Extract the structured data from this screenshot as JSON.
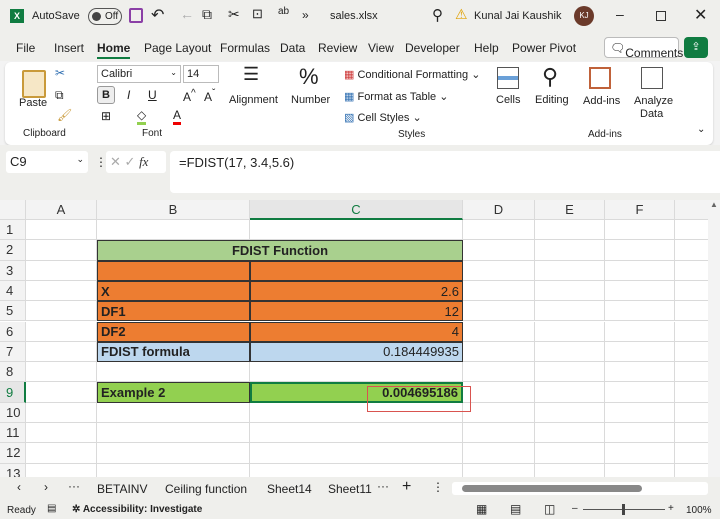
{
  "titlebar": {
    "autosave": "AutoSave",
    "toggle": "Off",
    "filename": "sales.xlsx",
    "user": "Kunal Jai Kaushik",
    "initials": "KJ"
  },
  "menu": [
    "File",
    "Insert",
    "Home",
    "Page Layout",
    "Formulas",
    "Data",
    "Review",
    "View",
    "Developer",
    "Help",
    "Power Pivot"
  ],
  "comments": "Comments",
  "ribbon": {
    "paste": "Paste",
    "clipboard": "Clipboard",
    "font_name": "Calibri",
    "font_size": "14",
    "font": "Font",
    "alignment": "Alignment",
    "number": "Number",
    "cond_format": "Conditional Formatting",
    "format_table": "Format as Table",
    "cell_styles": "Cell Styles",
    "styles": "Styles",
    "cells": "Cells",
    "editing": "Editing",
    "addins": "Add-ins",
    "addins_group": "Add-ins",
    "analyze": "Analyze",
    "analyze2": "Data"
  },
  "formula_bar": {
    "name_box": "C9",
    "formula": "=FDIST(17, 3.4,5.6)"
  },
  "columns": [
    "A",
    "B",
    "C",
    "D",
    "E",
    "F"
  ],
  "rows": [
    "1",
    "2",
    "3",
    "4",
    "5",
    "6",
    "7",
    "8",
    "9",
    "10",
    "11",
    "12",
    "13"
  ],
  "cells": {
    "title": "FDIST Function",
    "x_label": "X",
    "x_val": "2.6",
    "df1_label": "DF1",
    "df1_val": "12",
    "df2_label": "DF2",
    "df2_val": "4",
    "formula_label": "FDIST formula",
    "formula_val": "0.184449935",
    "ex2_label": "Example 2",
    "ex2_val": "0.004695186"
  },
  "sheets": [
    "BETAINV",
    "Ceiling function",
    "Sheet14",
    "Sheet11"
  ],
  "status": {
    "ready": "Ready",
    "accessibility": "Accessibility: Investigate",
    "zoom": "100%"
  },
  "colors": {
    "green_header": "#A9D08E",
    "orange": "#ED7D31",
    "blue": "#BDD7EE",
    "green_row": "#92D050",
    "excel_green": "#107C41"
  }
}
